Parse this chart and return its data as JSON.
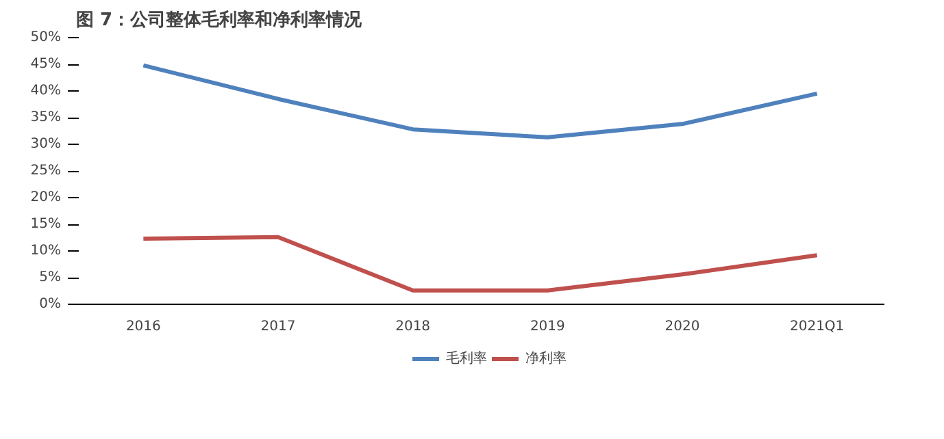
{
  "chart_data": {
    "type": "line",
    "title": "图 7：公司整体毛利率和净利率情况",
    "categories": [
      "2016",
      "2017",
      "2018",
      "2019",
      "2020",
      "2021Q1"
    ],
    "series": [
      {
        "name": "毛利率",
        "color": "#4f81bd",
        "values": [
          44.8,
          38.5,
          32.8,
          31.3,
          33.8,
          39.5
        ]
      },
      {
        "name": "净利率",
        "color": "#c0504d",
        "values": [
          12.3,
          12.6,
          2.6,
          2.6,
          5.6,
          9.2
        ]
      }
    ],
    "ylim": [
      0,
      50
    ],
    "yticks": [
      {
        "value": 0,
        "label": "0%"
      },
      {
        "value": 5,
        "label": "5%"
      },
      {
        "value": 10,
        "label": "10%"
      },
      {
        "value": 15,
        "label": "15%"
      },
      {
        "value": 20,
        "label": "20%"
      },
      {
        "value": 25,
        "label": "25%"
      },
      {
        "value": 30,
        "label": "30%"
      },
      {
        "value": 35,
        "label": "35%"
      },
      {
        "value": 40,
        "label": "40%"
      },
      {
        "value": 45,
        "label": "45%"
      },
      {
        "value": 50,
        "label": "50%"
      }
    ],
    "grid": false,
    "legend": "bottom",
    "marker": "none",
    "line_style": "solid"
  }
}
